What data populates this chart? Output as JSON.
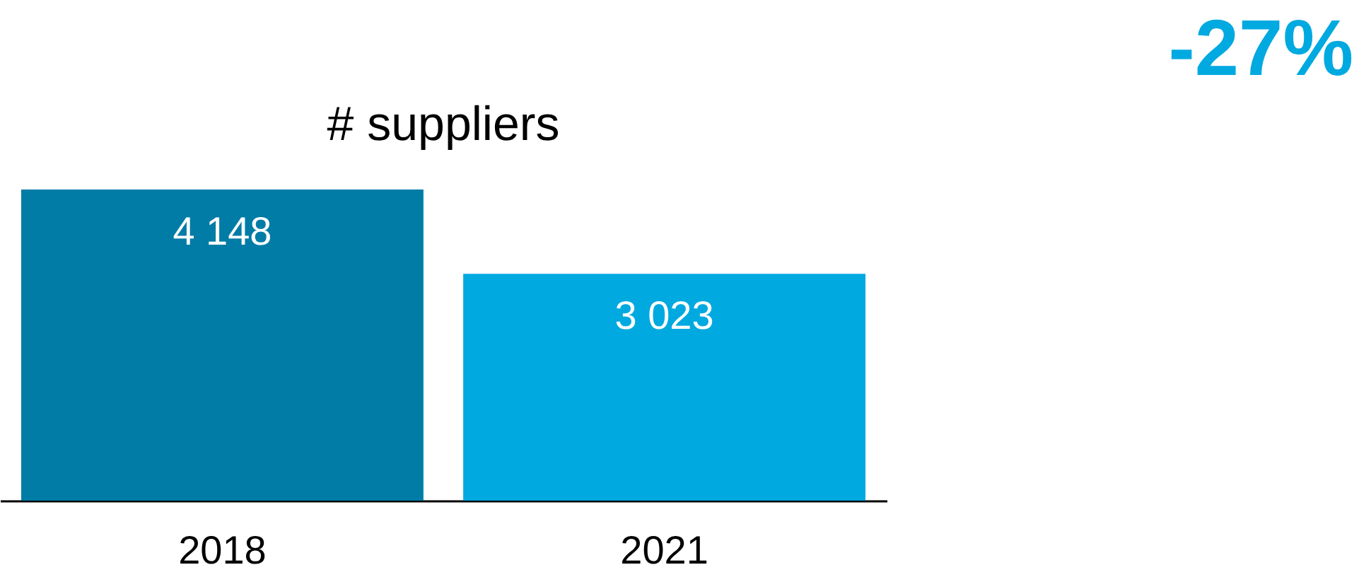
{
  "chart_data": {
    "type": "bar",
    "title": "# suppliers",
    "categories": [
      "2018",
      "2021"
    ],
    "values": [
      4148,
      3023
    ],
    "colors": [
      "#007ca6",
      "#00a9e0"
    ],
    "value_labels": [
      "4 148",
      "3 023"
    ],
    "annotations": [
      "-27%"
    ]
  }
}
